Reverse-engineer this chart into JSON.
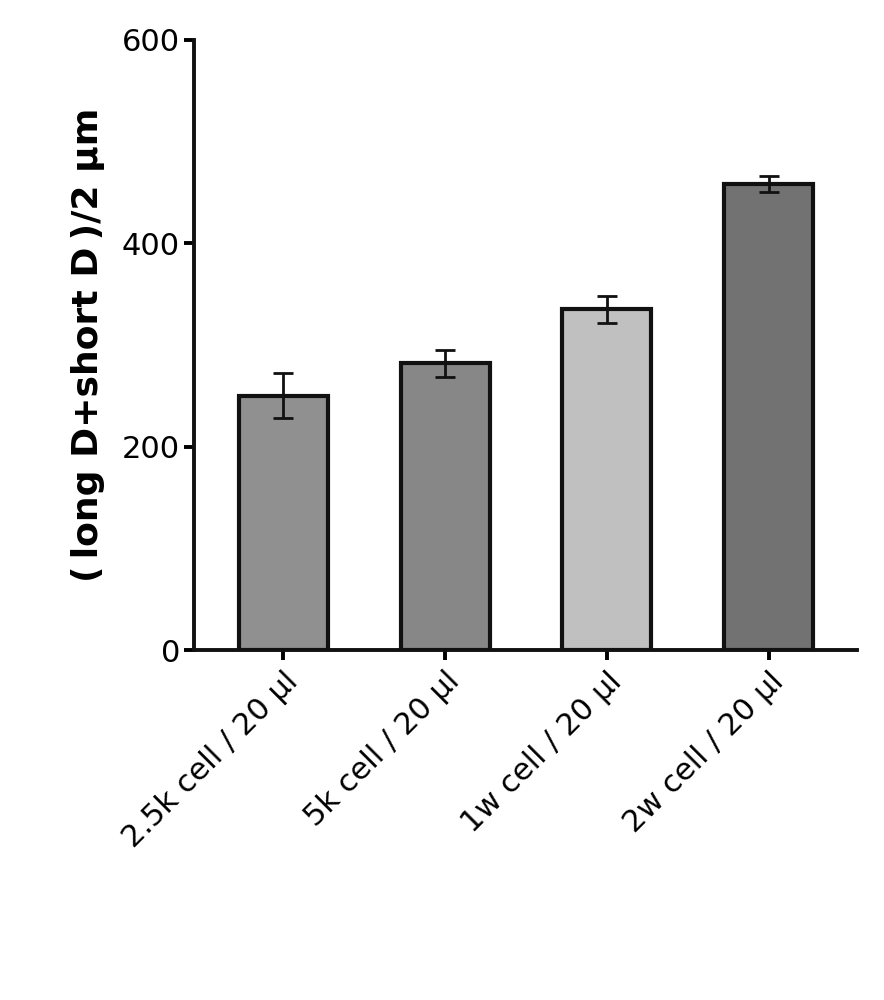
{
  "categories": [
    "2.5k cell / 20 μl",
    "5k cell / 20 μl",
    "1w cell / 20 μl",
    "2w cell / 20 μl"
  ],
  "values": [
    250,
    282,
    335,
    458
  ],
  "errors": [
    22,
    13,
    13,
    8
  ],
  "bar_colors": [
    "#909090",
    "#878787",
    "#c0c0c0",
    "#727272"
  ],
  "bar_edgecolor": "#111111",
  "bar_linewidth": 3.0,
  "ylabel": "( long D+short D )/2 μm",
  "ylim": [
    0,
    600
  ],
  "yticks": [
    0,
    200,
    400,
    600
  ],
  "figsize": [
    8.84,
    10.0
  ],
  "dpi": 100,
  "background_color": "#ffffff",
  "bar_width": 0.55,
  "errorbar_color": "#111111",
  "errorbar_linewidth": 2.0,
  "errorbar_capsize": 7,
  "errorbar_capthick": 2.0,
  "ylabel_fontsize": 26,
  "tick_fontsize": 22,
  "xtick_fontsize": 22,
  "spine_linewidth": 2.8
}
